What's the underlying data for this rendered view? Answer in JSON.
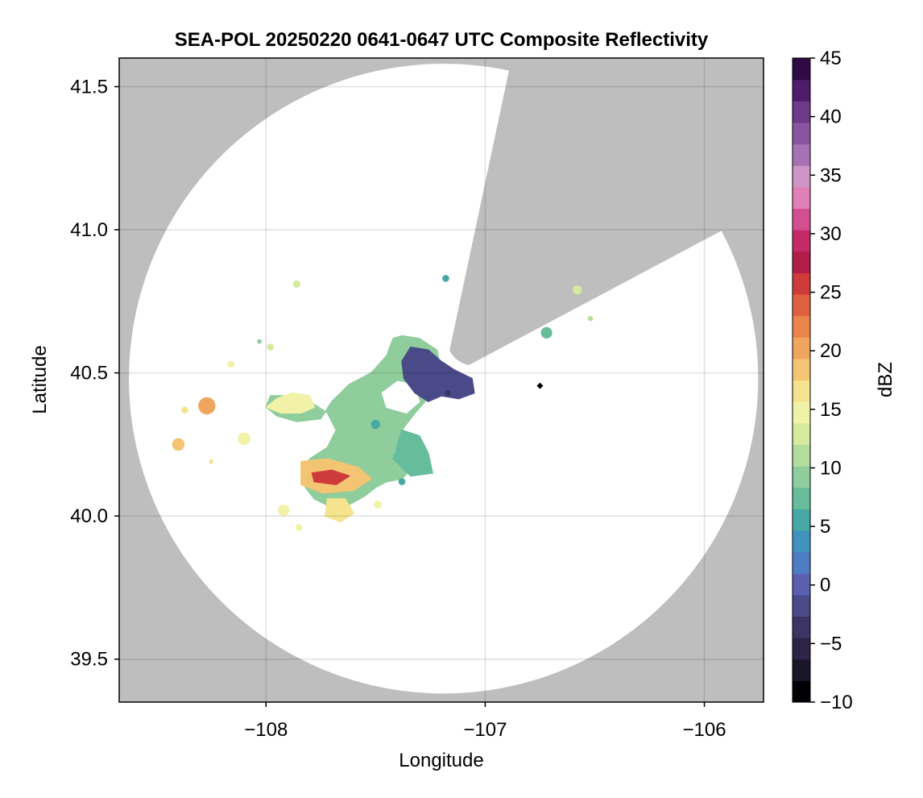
{
  "chart_data": {
    "type": "heatmap",
    "title": "SEA-POL 20250220 0641-0647 UTC Composite Reflectivity",
    "xlabel": "Longitude",
    "ylabel": "Latitude",
    "xlim": [
      -108.67,
      -105.73
    ],
    "ylim": [
      39.35,
      41.6
    ],
    "xticks": [
      -108,
      -107,
      -106
    ],
    "xtick_labels": [
      "−108",
      "−107",
      "−106"
    ],
    "yticks": [
      39.5,
      40.0,
      40.5,
      41.0,
      41.5
    ],
    "ytick_labels": [
      "39.5",
      "40.0",
      "40.5",
      "41.0",
      "41.5"
    ],
    "grid": true,
    "background_color": "#bebebe",
    "coverage": {
      "center": [
        -107.19,
        40.48
      ],
      "radius_deg_lat": 1.1,
      "blocked_sector_bearing_deg": [
        12,
        62
      ],
      "blocked_inner_radius_deg_lat": 0.1
    },
    "radar_marker": [
      -106.75,
      40.455
    ],
    "colorbar": {
      "label": "dBZ",
      "min": -10,
      "max": 45,
      "ticks": [
        -10,
        -5,
        0,
        5,
        10,
        15,
        20,
        25,
        30,
        35,
        40,
        45
      ],
      "tick_labels": [
        "−10",
        "−5",
        "0",
        "5",
        "10",
        "15",
        "20",
        "25",
        "30",
        "35",
        "40",
        "45"
      ],
      "colors": [
        "#000004",
        "#1a1528",
        "#2c2346",
        "#3b3563",
        "#4a4a89",
        "#5a5fb0",
        "#4e7dc4",
        "#3f93bd",
        "#46a9a6",
        "#66bd9b",
        "#8fcd9c",
        "#b3dd9c",
        "#d6ea9e",
        "#f1f2a8",
        "#f5e38f",
        "#f3c573",
        "#f0a55c",
        "#eb844a",
        "#e0613f",
        "#cd3c3b",
        "#b01d48",
        "#c42a6a",
        "#d24f92",
        "#e07fb8",
        "#cf95c9",
        "#a672b3",
        "#8a55a0",
        "#6e3a8a",
        "#4e1c6a",
        "#2f0a45"
      ]
    },
    "echo_regions": [
      {
        "name": "main-stratiform",
        "dbz": 9,
        "polygon": [
          [
            -107.38,
            40.63
          ],
          [
            -107.3,
            40.62
          ],
          [
            -107.22,
            40.58
          ],
          [
            -107.2,
            40.5
          ],
          [
            -107.24,
            40.43
          ],
          [
            -107.32,
            40.36
          ],
          [
            -107.38,
            40.3
          ],
          [
            -107.42,
            40.22
          ],
          [
            -107.36,
            40.2
          ],
          [
            -107.33,
            40.17
          ],
          [
            -107.38,
            40.13
          ],
          [
            -107.45,
            40.12
          ],
          [
            -107.5,
            40.1
          ],
          [
            -107.55,
            40.07
          ],
          [
            -107.62,
            40.04
          ],
          [
            -107.7,
            40.03
          ],
          [
            -107.78,
            40.06
          ],
          [
            -107.82,
            40.1
          ],
          [
            -107.83,
            40.16
          ],
          [
            -107.8,
            40.2
          ],
          [
            -107.72,
            40.24
          ],
          [
            -107.68,
            40.3
          ],
          [
            -107.72,
            40.36
          ],
          [
            -107.8,
            40.4
          ],
          [
            -107.88,
            40.42
          ],
          [
            -107.98,
            40.42
          ],
          [
            -108.0,
            40.38
          ],
          [
            -107.95,
            40.35
          ],
          [
            -107.86,
            40.33
          ],
          [
            -107.75,
            40.34
          ],
          [
            -107.7,
            40.4
          ],
          [
            -107.62,
            40.46
          ],
          [
            -107.52,
            40.5
          ],
          [
            -107.45,
            40.56
          ],
          [
            -107.42,
            40.62
          ]
        ]
      },
      {
        "name": "dry-notch",
        "dbz": -99,
        "polygon": [
          [
            -107.4,
            40.47
          ],
          [
            -107.33,
            40.46
          ],
          [
            -107.3,
            40.4
          ],
          [
            -107.36,
            40.36
          ],
          [
            -107.45,
            40.38
          ],
          [
            -107.47,
            40.43
          ]
        ]
      },
      {
        "name": "near-radar-low",
        "dbz": -2,
        "polygon": [
          [
            -107.34,
            40.59
          ],
          [
            -107.26,
            40.58
          ],
          [
            -107.2,
            40.54
          ],
          [
            -107.14,
            40.51
          ],
          [
            -107.06,
            40.48
          ],
          [
            -107.05,
            40.43
          ],
          [
            -107.12,
            40.41
          ],
          [
            -107.2,
            40.42
          ],
          [
            -107.26,
            40.4
          ],
          [
            -107.32,
            40.43
          ],
          [
            -107.37,
            40.48
          ],
          [
            -107.38,
            40.54
          ]
        ]
      },
      {
        "name": "west-band",
        "dbz": 15,
        "polygon": [
          [
            -107.95,
            40.41
          ],
          [
            -107.88,
            40.43
          ],
          [
            -107.8,
            40.42
          ],
          [
            -107.78,
            40.38
          ],
          [
            -107.84,
            40.36
          ],
          [
            -107.93,
            40.36
          ],
          [
            -108.0,
            40.38
          ]
        ]
      },
      {
        "name": "south-core",
        "dbz": 18,
        "polygon": [
          [
            -107.84,
            40.19
          ],
          [
            -107.72,
            40.2
          ],
          [
            -107.58,
            40.17
          ],
          [
            -107.52,
            40.13
          ],
          [
            -107.6,
            40.09
          ],
          [
            -107.74,
            40.08
          ],
          [
            -107.84,
            40.11
          ]
        ]
      },
      {
        "name": "south-core-max",
        "dbz": 25,
        "polygon": [
          [
            -107.79,
            40.15
          ],
          [
            -107.7,
            40.16
          ],
          [
            -107.62,
            40.14
          ],
          [
            -107.68,
            40.11
          ],
          [
            -107.78,
            40.12
          ]
        ]
      },
      {
        "name": "south-lobe",
        "dbz": 16,
        "polygon": [
          [
            -107.72,
            40.06
          ],
          [
            -107.64,
            40.06
          ],
          [
            -107.6,
            40.01
          ],
          [
            -107.66,
            39.98
          ],
          [
            -107.73,
            40.0
          ]
        ]
      },
      {
        "name": "east-lobe",
        "dbz": 8,
        "polygon": [
          [
            -107.38,
            40.3
          ],
          [
            -107.3,
            40.28
          ],
          [
            -107.26,
            40.22
          ],
          [
            -107.24,
            40.15
          ],
          [
            -107.34,
            40.14
          ],
          [
            -107.42,
            40.2
          ]
        ]
      }
    ],
    "echo_cells": [
      {
        "lon": -108.27,
        "lat": 40.385,
        "r": 0.03,
        "dbz": 20
      },
      {
        "lon": -108.37,
        "lat": 40.37,
        "r": 0.012,
        "dbz": 17
      },
      {
        "lon": -108.4,
        "lat": 40.25,
        "r": 0.022,
        "dbz": 18
      },
      {
        "lon": -108.1,
        "lat": 40.27,
        "r": 0.022,
        "dbz": 15
      },
      {
        "lon": -108.16,
        "lat": 40.53,
        "r": 0.012,
        "dbz": 14
      },
      {
        "lon": -107.86,
        "lat": 40.81,
        "r": 0.013,
        "dbz": 13
      },
      {
        "lon": -107.98,
        "lat": 40.59,
        "r": 0.012,
        "dbz": 12
      },
      {
        "lon": -108.03,
        "lat": 40.61,
        "r": 0.008,
        "dbz": 9
      },
      {
        "lon": -107.92,
        "lat": 40.02,
        "r": 0.02,
        "dbz": 15
      },
      {
        "lon": -107.85,
        "lat": 39.96,
        "r": 0.012,
        "dbz": 15
      },
      {
        "lon": -108.25,
        "lat": 40.19,
        "r": 0.008,
        "dbz": 16
      },
      {
        "lon": -107.18,
        "lat": 40.83,
        "r": 0.012,
        "dbz": 5
      },
      {
        "lon": -106.72,
        "lat": 40.64,
        "r": 0.02,
        "dbz": 7
      },
      {
        "lon": -106.58,
        "lat": 40.79,
        "r": 0.016,
        "dbz": 12
      },
      {
        "lon": -106.52,
        "lat": 40.69,
        "r": 0.009,
        "dbz": 11
      },
      {
        "lon": -107.27,
        "lat": 40.19,
        "r": 0.012,
        "dbz": 8
      },
      {
        "lon": -107.38,
        "lat": 40.12,
        "r": 0.012,
        "dbz": 6
      },
      {
        "lon": -107.49,
        "lat": 40.04,
        "r": 0.014,
        "dbz": 14
      },
      {
        "lon": -107.5,
        "lat": 40.32,
        "r": 0.016,
        "dbz": 6
      },
      {
        "lon": -107.17,
        "lat": 40.43,
        "r": 0.01,
        "dbz": -3
      }
    ]
  }
}
